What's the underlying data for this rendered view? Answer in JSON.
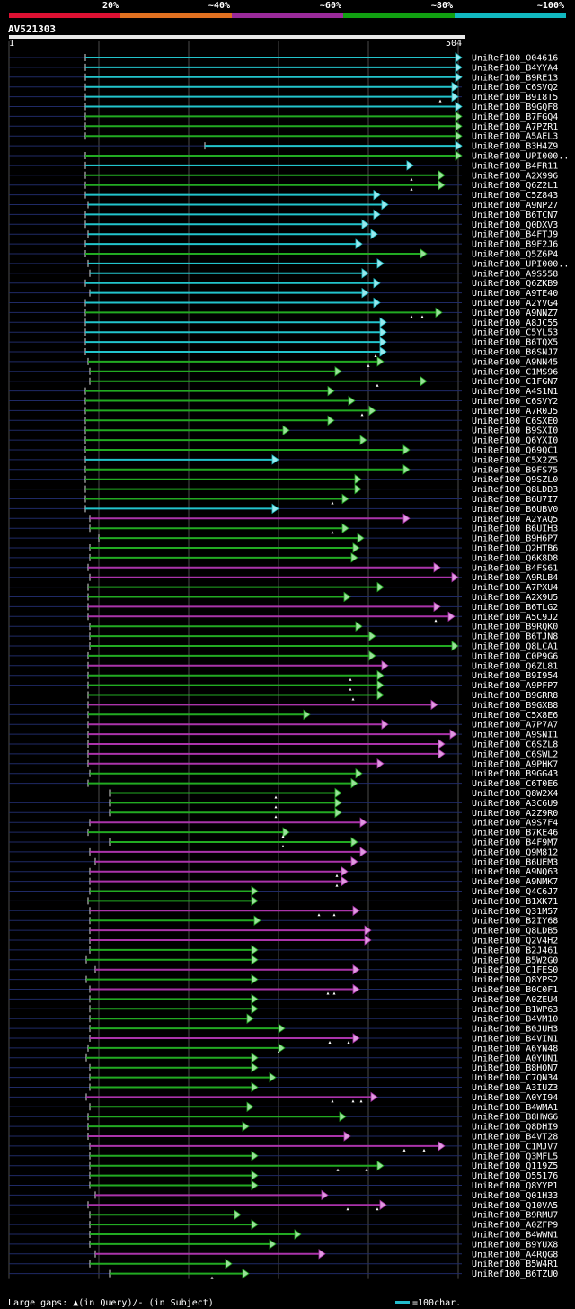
{
  "legend": [
    {
      "label": "20%",
      "color": "#dd1133"
    },
    {
      "label": "~40%",
      "color": "#e07020"
    },
    {
      "label": "~60%",
      "color": "#9a2a9a"
    },
    {
      "label": "~80%",
      "color": "#11a011"
    },
    {
      "label": "~100%",
      "color": "#11b8c0"
    }
  ],
  "query": {
    "name": "AV521303",
    "start_label": "1",
    "end_label": "504"
  },
  "footer": {
    "gaps_text": "Large gaps: ▲(in Query)/- (in Subject)",
    "scale_text": "=100char."
  },
  "chart_data": {
    "type": "alignment",
    "query_length": 504,
    "color_key": {
      "cyan": "~100%",
      "green": "~80%",
      "magenta": "~60%"
    },
    "hits": [
      {
        "name": "UniRef100_O04616",
        "start": 85,
        "end": 504,
        "color": "cyan",
        "gaps": []
      },
      {
        "name": "UniRef100_B4YYA4",
        "start": 85,
        "end": 504,
        "color": "cyan",
        "gaps": []
      },
      {
        "name": "UniRef100_B9RE13",
        "start": 85,
        "end": 504,
        "color": "cyan",
        "gaps": []
      },
      {
        "name": "UniRef100_C6SVQ2",
        "start": 85,
        "end": 500,
        "color": "cyan",
        "gaps": []
      },
      {
        "name": "UniRef100_B9I8T5",
        "start": 85,
        "end": 500,
        "color": "cyan",
        "gaps": [
          480
        ]
      },
      {
        "name": "UniRef100_B9GQF8",
        "start": 85,
        "end": 504,
        "color": "cyan",
        "gaps": []
      },
      {
        "name": "UniRef100_B7FGQ4",
        "start": 85,
        "end": 504,
        "color": "green",
        "gaps": []
      },
      {
        "name": "UniRef100_A7PZR1",
        "start": 85,
        "end": 504,
        "color": "green",
        "gaps": []
      },
      {
        "name": "UniRef100_A5AEL3",
        "start": 85,
        "end": 504,
        "color": "green",
        "gaps": []
      },
      {
        "name": "UniRef100_B3H4Z9",
        "start": 218,
        "end": 504,
        "color": "cyan",
        "gaps": []
      },
      {
        "name": "UniRef100_UPI000..",
        "start": 85,
        "end": 504,
        "color": "green",
        "gaps": []
      },
      {
        "name": "UniRef100_B4FR11",
        "start": 85,
        "end": 450,
        "color": "cyan",
        "gaps": []
      },
      {
        "name": "UniRef100_A2X996",
        "start": 85,
        "end": 485,
        "color": "green",
        "gaps": [
          448
        ]
      },
      {
        "name": "UniRef100_Q6Z2L1",
        "start": 85,
        "end": 485,
        "color": "green",
        "gaps": [
          448
        ]
      },
      {
        "name": "UniRef100_C5Z843",
        "start": 85,
        "end": 413,
        "color": "cyan",
        "gaps": []
      },
      {
        "name": "UniRef100_A9NP27",
        "start": 88,
        "end": 422,
        "color": "cyan",
        "gaps": []
      },
      {
        "name": "UniRef100_B6TCN7",
        "start": 85,
        "end": 413,
        "color": "cyan",
        "gaps": []
      },
      {
        "name": "UniRef100_Q0DXV3",
        "start": 85,
        "end": 400,
        "color": "cyan",
        "gaps": []
      },
      {
        "name": "UniRef100_B4FTJ9",
        "start": 88,
        "end": 410,
        "color": "cyan",
        "gaps": []
      },
      {
        "name": "UniRef100_B9F2J6",
        "start": 85,
        "end": 393,
        "color": "cyan",
        "gaps": []
      },
      {
        "name": "UniRef100_Q5Z6P4",
        "start": 85,
        "end": 465,
        "color": "green",
        "gaps": []
      },
      {
        "name": "UniRef100_UPI000..",
        "start": 88,
        "end": 417,
        "color": "cyan",
        "gaps": []
      },
      {
        "name": "UniRef100_A9S558",
        "start": 90,
        "end": 400,
        "color": "cyan",
        "gaps": []
      },
      {
        "name": "UniRef100_Q6ZKB9",
        "start": 85,
        "end": 413,
        "color": "cyan",
        "gaps": []
      },
      {
        "name": "UniRef100_A9TE40",
        "start": 90,
        "end": 400,
        "color": "cyan",
        "gaps": []
      },
      {
        "name": "UniRef100_A2YVG4",
        "start": 85,
        "end": 413,
        "color": "cyan",
        "gaps": []
      },
      {
        "name": "UniRef100_A9NNZ7",
        "start": 85,
        "end": 482,
        "color": "green",
        "gaps": [
          448,
          460
        ]
      },
      {
        "name": "UniRef100_A8JC55",
        "start": 85,
        "end": 420,
        "color": "cyan",
        "gaps": []
      },
      {
        "name": "UniRef100_C5YL53",
        "start": 85,
        "end": 420,
        "color": "cyan",
        "gaps": []
      },
      {
        "name": "UniRef100_B6TQX5",
        "start": 85,
        "end": 420,
        "color": "cyan",
        "gaps": []
      },
      {
        "name": "UniRef100_B6SNJ7",
        "start": 85,
        "end": 420,
        "color": "cyan",
        "gaps": [
          408
        ]
      },
      {
        "name": "UniRef100_A9NN45",
        "start": 88,
        "end": 417,
        "color": "green",
        "gaps": [
          400
        ]
      },
      {
        "name": "UniRef100_C1MS96",
        "start": 90,
        "end": 370,
        "color": "green",
        "gaps": []
      },
      {
        "name": "UniRef100_C1FGN7",
        "start": 90,
        "end": 465,
        "color": "green",
        "gaps": [
          410
        ]
      },
      {
        "name": "UniRef100_A4S1N1",
        "start": 85,
        "end": 362,
        "color": "green",
        "gaps": []
      },
      {
        "name": "UniRef100_C6SVY2",
        "start": 85,
        "end": 385,
        "color": "green",
        "gaps": []
      },
      {
        "name": "UniRef100_A7R0J5",
        "start": 85,
        "end": 408,
        "color": "green",
        "gaps": [
          393
        ]
      },
      {
        "name": "UniRef100_C6SXE0",
        "start": 85,
        "end": 362,
        "color": "green",
        "gaps": []
      },
      {
        "name": "UniRef100_B9SXI0",
        "start": 85,
        "end": 312,
        "color": "green",
        "gaps": []
      },
      {
        "name": "UniRef100_Q6YXI0",
        "start": 85,
        "end": 398,
        "color": "green",
        "gaps": []
      },
      {
        "name": "UniRef100_Q69QC1",
        "start": 85,
        "end": 446,
        "color": "green",
        "gaps": []
      },
      {
        "name": "UniRef100_C5X2Z5",
        "start": 85,
        "end": 300,
        "color": "cyan",
        "gaps": []
      },
      {
        "name": "UniRef100_B9FS75",
        "start": 85,
        "end": 446,
        "color": "green",
        "gaps": []
      },
      {
        "name": "UniRef100_Q9SZL0",
        "start": 85,
        "end": 392,
        "color": "green",
        "gaps": []
      },
      {
        "name": "UniRef100_Q8LDD3",
        "start": 85,
        "end": 392,
        "color": "green",
        "gaps": []
      },
      {
        "name": "UniRef100_B6U7I7",
        "start": 85,
        "end": 378,
        "color": "green",
        "gaps": [
          360
        ]
      },
      {
        "name": "UniRef100_B6UBV0",
        "start": 85,
        "end": 300,
        "color": "cyan",
        "gaps": []
      },
      {
        "name": "UniRef100_A2YAQ5",
        "start": 90,
        "end": 446,
        "color": "magenta",
        "gaps": []
      },
      {
        "name": "UniRef100_B6UIH3",
        "start": 90,
        "end": 378,
        "color": "green",
        "gaps": [
          360
        ]
      },
      {
        "name": "UniRef100_B9H6P7",
        "start": 100,
        "end": 395,
        "color": "green",
        "gaps": []
      },
      {
        "name": "UniRef100_Q2HTB6",
        "start": 90,
        "end": 390,
        "color": "green",
        "gaps": []
      },
      {
        "name": "UniRef100_Q6K8D8",
        "start": 90,
        "end": 388,
        "color": "green",
        "gaps": []
      },
      {
        "name": "UniRef100_B4FS61",
        "start": 88,
        "end": 480,
        "color": "magenta",
        "gaps": []
      },
      {
        "name": "UniRef100_A9RLB4",
        "start": 90,
        "end": 500,
        "color": "magenta",
        "gaps": []
      },
      {
        "name": "UniRef100_A7PXU4",
        "start": 88,
        "end": 417,
        "color": "green",
        "gaps": []
      },
      {
        "name": "UniRef100_A2X9U5",
        "start": 88,
        "end": 380,
        "color": "green",
        "gaps": []
      },
      {
        "name": "UniRef100_B6TLG2",
        "start": 88,
        "end": 480,
        "color": "magenta",
        "gaps": []
      },
      {
        "name": "UniRef100_A5C9J2",
        "start": 88,
        "end": 496,
        "color": "magenta",
        "gaps": [
          475
        ]
      },
      {
        "name": "UniRef100_B9RQK0",
        "start": 90,
        "end": 393,
        "color": "green",
        "gaps": []
      },
      {
        "name": "UniRef100_B6TJN8",
        "start": 90,
        "end": 408,
        "color": "green",
        "gaps": []
      },
      {
        "name": "UniRef100_Q8LCA1",
        "start": 90,
        "end": 500,
        "color": "green",
        "gaps": []
      },
      {
        "name": "UniRef100_C0P9G6",
        "start": 88,
        "end": 408,
        "color": "green",
        "gaps": []
      },
      {
        "name": "UniRef100_Q6ZL81",
        "start": 88,
        "end": 422,
        "color": "magenta",
        "gaps": []
      },
      {
        "name": "UniRef100_B9I954",
        "start": 88,
        "end": 417,
        "color": "green",
        "gaps": [
          380
        ]
      },
      {
        "name": "UniRef100_A9PFP7",
        "start": 88,
        "end": 417,
        "color": "green",
        "gaps": [
          380
        ]
      },
      {
        "name": "UniRef100_B9GRR8",
        "start": 88,
        "end": 417,
        "color": "green",
        "gaps": [
          383
        ]
      },
      {
        "name": "UniRef100_B9GXB8",
        "start": 88,
        "end": 477,
        "color": "magenta",
        "gaps": []
      },
      {
        "name": "UniRef100_C5X8E6",
        "start": 88,
        "end": 335,
        "color": "green",
        "gaps": []
      },
      {
        "name": "UniRef100_A7P7A7",
        "start": 88,
        "end": 422,
        "color": "magenta",
        "gaps": []
      },
      {
        "name": "UniRef100_A9SNI1",
        "start": 88,
        "end": 498,
        "color": "magenta",
        "gaps": []
      },
      {
        "name": "UniRef100_C6SZL8",
        "start": 88,
        "end": 485,
        "color": "magenta",
        "gaps": []
      },
      {
        "name": "UniRef100_C6SWL2",
        "start": 88,
        "end": 485,
        "color": "magenta",
        "gaps": []
      },
      {
        "name": "UniRef100_A9PHK7",
        "start": 88,
        "end": 417,
        "color": "magenta",
        "gaps": []
      },
      {
        "name": "UniRef100_B9GG43",
        "start": 90,
        "end": 393,
        "color": "green",
        "gaps": []
      },
      {
        "name": "UniRef100_C6T0E6",
        "start": 88,
        "end": 388,
        "color": "green",
        "gaps": []
      },
      {
        "name": "UniRef100_Q8W2X4",
        "start": 112,
        "end": 370,
        "color": "green",
        "gaps": [
          297
        ]
      },
      {
        "name": "UniRef100_A3C6U9",
        "start": 112,
        "end": 370,
        "color": "green",
        "gaps": [
          297
        ]
      },
      {
        "name": "UniRef100_A2Z9R0",
        "start": 112,
        "end": 370,
        "color": "green",
        "gaps": [
          297
        ]
      },
      {
        "name": "UniRef100_A9S7F4",
        "start": 90,
        "end": 398,
        "color": "magenta",
        "gaps": []
      },
      {
        "name": "UniRef100_B7KE46",
        "start": 88,
        "end": 312,
        "color": "green",
        "gaps": [
          305
        ]
      },
      {
        "name": "UniRef100_B4F9M7",
        "start": 112,
        "end": 388,
        "color": "green",
        "gaps": [
          305
        ]
      },
      {
        "name": "UniRef100_Q9M812",
        "start": 90,
        "end": 398,
        "color": "magenta",
        "gaps": []
      },
      {
        "name": "UniRef100_B6UEM3",
        "start": 96,
        "end": 388,
        "color": "magenta",
        "gaps": []
      },
      {
        "name": "UniRef100_A9NQ63",
        "start": 90,
        "end": 377,
        "color": "magenta",
        "gaps": [
          365
        ]
      },
      {
        "name": "UniRef100_A9NMK7",
        "start": 90,
        "end": 377,
        "color": "magenta",
        "gaps": [
          365
        ]
      },
      {
        "name": "UniRef100_Q4C6J7",
        "start": 90,
        "end": 277,
        "color": "green",
        "gaps": []
      },
      {
        "name": "UniRef100_B1XK71",
        "start": 88,
        "end": 277,
        "color": "green",
        "gaps": []
      },
      {
        "name": "UniRef100_Q31M57",
        "start": 90,
        "end": 390,
        "color": "magenta",
        "gaps": [
          345,
          362
        ]
      },
      {
        "name": "UniRef100_B2IY68",
        "start": 90,
        "end": 280,
        "color": "green",
        "gaps": []
      },
      {
        "name": "UniRef100_Q8LDB5",
        "start": 90,
        "end": 403,
        "color": "magenta",
        "gaps": []
      },
      {
        "name": "UniRef100_Q2V4H2",
        "start": 90,
        "end": 403,
        "color": "magenta",
        "gaps": []
      },
      {
        "name": "UniRef100_B2J461",
        "start": 90,
        "end": 277,
        "color": "green",
        "gaps": []
      },
      {
        "name": "UniRef100_B5W2G0",
        "start": 86,
        "end": 277,
        "color": "green",
        "gaps": []
      },
      {
        "name": "UniRef100_C1FES0",
        "start": 96,
        "end": 390,
        "color": "magenta",
        "gaps": []
      },
      {
        "name": "UniRef100_Q8YPS2",
        "start": 86,
        "end": 277,
        "color": "green",
        "gaps": []
      },
      {
        "name": "UniRef100_B0C0F1",
        "start": 90,
        "end": 390,
        "color": "magenta",
        "gaps": [
          355,
          362
        ]
      },
      {
        "name": "UniRef100_A0ZEU4",
        "start": 90,
        "end": 277,
        "color": "green",
        "gaps": []
      },
      {
        "name": "UniRef100_B1WP63",
        "start": 90,
        "end": 277,
        "color": "green",
        "gaps": []
      },
      {
        "name": "UniRef100_B4VM10",
        "start": 90,
        "end": 272,
        "color": "green",
        "gaps": []
      },
      {
        "name": "UniRef100_B0JUH3",
        "start": 90,
        "end": 307,
        "color": "green",
        "gaps": []
      },
      {
        "name": "UniRef100_B4VIN1",
        "start": 90,
        "end": 390,
        "color": "magenta",
        "gaps": [
          357,
          378
        ]
      },
      {
        "name": "UniRef100_A6YN48",
        "start": 88,
        "end": 307,
        "color": "green",
        "gaps": [
          300
        ]
      },
      {
        "name": "UniRef100_A0YUN1",
        "start": 86,
        "end": 277,
        "color": "green",
        "gaps": []
      },
      {
        "name": "UniRef100_B8HQN7",
        "start": 90,
        "end": 277,
        "color": "green",
        "gaps": []
      },
      {
        "name": "UniRef100_C7QN34",
        "start": 90,
        "end": 297,
        "color": "green",
        "gaps": []
      },
      {
        "name": "UniRef100_A3IUZ3",
        "start": 90,
        "end": 277,
        "color": "green",
        "gaps": []
      },
      {
        "name": "UniRef100_A0YI94",
        "start": 86,
        "end": 410,
        "color": "magenta",
        "gaps": [
          360,
          383,
          392
        ]
      },
      {
        "name": "UniRef100_B4WMA1",
        "start": 90,
        "end": 272,
        "color": "green",
        "gaps": []
      },
      {
        "name": "UniRef100_B8HWG6",
        "start": 88,
        "end": 375,
        "color": "green",
        "gaps": []
      },
      {
        "name": "UniRef100_Q8DHI9",
        "start": 88,
        "end": 267,
        "color": "green",
        "gaps": []
      },
      {
        "name": "UniRef100_B4VT28",
        "start": 88,
        "end": 380,
        "color": "magenta",
        "gaps": []
      },
      {
        "name": "UniRef100_C1MJV7",
        "start": 90,
        "end": 485,
        "color": "magenta",
        "gaps": [
          440,
          462
        ]
      },
      {
        "name": "UniRef100_Q3MFL5",
        "start": 90,
        "end": 277,
        "color": "green",
        "gaps": []
      },
      {
        "name": "UniRef100_Q119Z5",
        "start": 90,
        "end": 417,
        "color": "green",
        "gaps": [
          366,
          398
        ]
      },
      {
        "name": "UniRef100_Q55176",
        "start": 90,
        "end": 277,
        "color": "green",
        "gaps": []
      },
      {
        "name": "UniRef100_Q8YYP1",
        "start": 90,
        "end": 277,
        "color": "green",
        "gaps": []
      },
      {
        "name": "UniRef100_Q01H33",
        "start": 96,
        "end": 355,
        "color": "magenta",
        "gaps": []
      },
      {
        "name": "UniRef100_Q10VA5",
        "start": 88,
        "end": 420,
        "color": "magenta",
        "gaps": [
          377,
          410
        ]
      },
      {
        "name": "UniRef100_B9RMU7",
        "start": 90,
        "end": 258,
        "color": "green",
        "gaps": []
      },
      {
        "name": "UniRef100_A0ZFP9",
        "start": 90,
        "end": 277,
        "color": "green",
        "gaps": []
      },
      {
        "name": "UniRef100_B4WWN1",
        "start": 90,
        "end": 325,
        "color": "green",
        "gaps": []
      },
      {
        "name": "UniRef100_B9YUX8",
        "start": 90,
        "end": 297,
        "color": "green",
        "gaps": []
      },
      {
        "name": "UniRef100_A4RQG8",
        "start": 96,
        "end": 352,
        "color": "magenta",
        "gaps": []
      },
      {
        "name": "UniRef100_B5W4R1",
        "start": 90,
        "end": 248,
        "color": "green",
        "gaps": []
      },
      {
        "name": "UniRef100_B6TZU0",
        "start": 112,
        "end": 267,
        "color": "green",
        "gaps": [
          226
        ]
      }
    ]
  }
}
